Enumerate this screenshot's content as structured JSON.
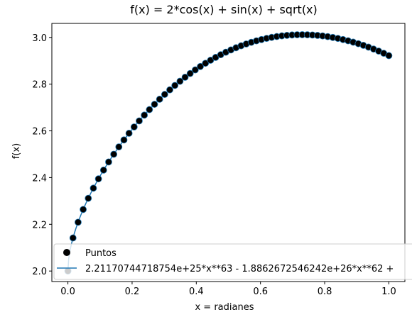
{
  "chart_data": {
    "type": "scatter",
    "title": "f(x) = 2*cos(x) + sin(x) + sqrt(x)",
    "xlabel": "x = radianes",
    "ylabel": "f(x)",
    "xlim": [
      -0.05,
      1.05
    ],
    "ylim": [
      1.955,
      3.06
    ],
    "x_ticks": [
      0.0,
      0.2,
      0.4,
      0.6,
      0.8,
      1.0
    ],
    "x_tick_labels": [
      "0.0",
      "0.2",
      "0.4",
      "0.6",
      "0.8",
      "1.0"
    ],
    "y_ticks": [
      2.0,
      2.2,
      2.4,
      2.6,
      2.8,
      3.0
    ],
    "y_tick_labels": [
      "2.0",
      "2.2",
      "2.4",
      "2.6",
      "2.8",
      "3.0"
    ],
    "function": "2*cos(x) + sin(x) + sqrt(x)",
    "x_range": [
      0.0,
      1.0
    ],
    "num_points": 64,
    "series": [
      {
        "name": "Puntos",
        "kind": "scatter",
        "color": "#000000",
        "edgecolor": "#1f77b4"
      },
      {
        "name": "2.21170744718754e+25*x**63 - 1.8862672546242e+26*x**62 +",
        "kind": "line",
        "color": "#1f77b4"
      }
    ],
    "legend": {
      "position": "lower-left",
      "labels": [
        "Puntos",
        "2.21170744718754e+25*x**63 - 1.8862672546242e+26*x**62 +"
      ]
    },
    "colors": {
      "points": "#000000",
      "point_edge": "#1f77b4",
      "line": "#1f77b4",
      "axes": "#000000",
      "background": "#ffffff"
    }
  }
}
